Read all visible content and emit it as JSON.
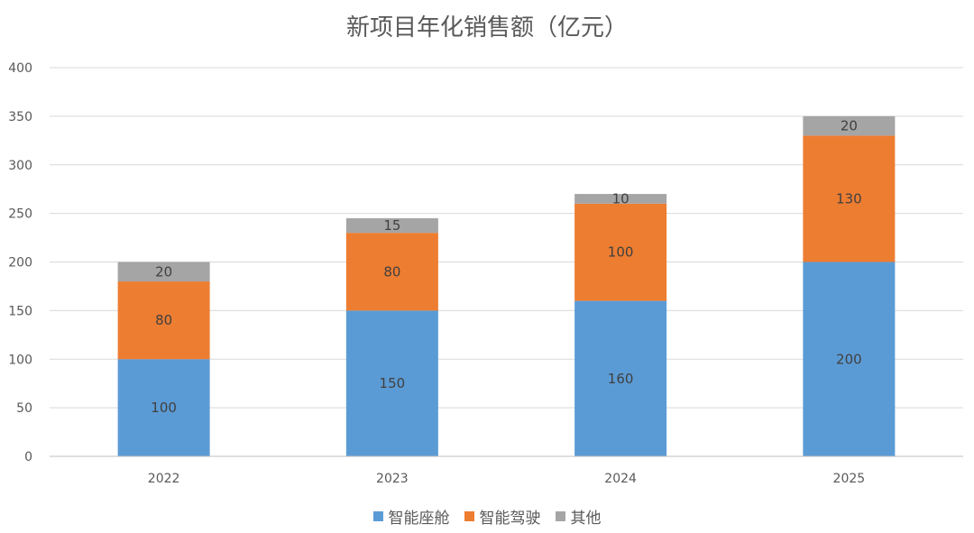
{
  "chart_data": {
    "type": "bar",
    "stacked": true,
    "title": "新项目年化销售额（亿元）",
    "xlabel": "",
    "ylabel": "",
    "categories": [
      "2022",
      "2023",
      "2024",
      "2025"
    ],
    "series": [
      {
        "name": "智能座舱",
        "values": [
          100,
          150,
          160,
          200
        ],
        "color": "#5B9BD5"
      },
      {
        "name": "智能驾驶",
        "values": [
          80,
          80,
          100,
          130
        ],
        "color": "#ED7D31"
      },
      {
        "name": "其他",
        "values": [
          20,
          15,
          10,
          20
        ],
        "color": "#A5A5A5"
      }
    ],
    "ylim": [
      0,
      400
    ],
    "yticks": [
      0,
      50,
      100,
      150,
      200,
      250,
      300,
      350,
      400
    ],
    "grid": true,
    "legend_position": "bottom"
  }
}
